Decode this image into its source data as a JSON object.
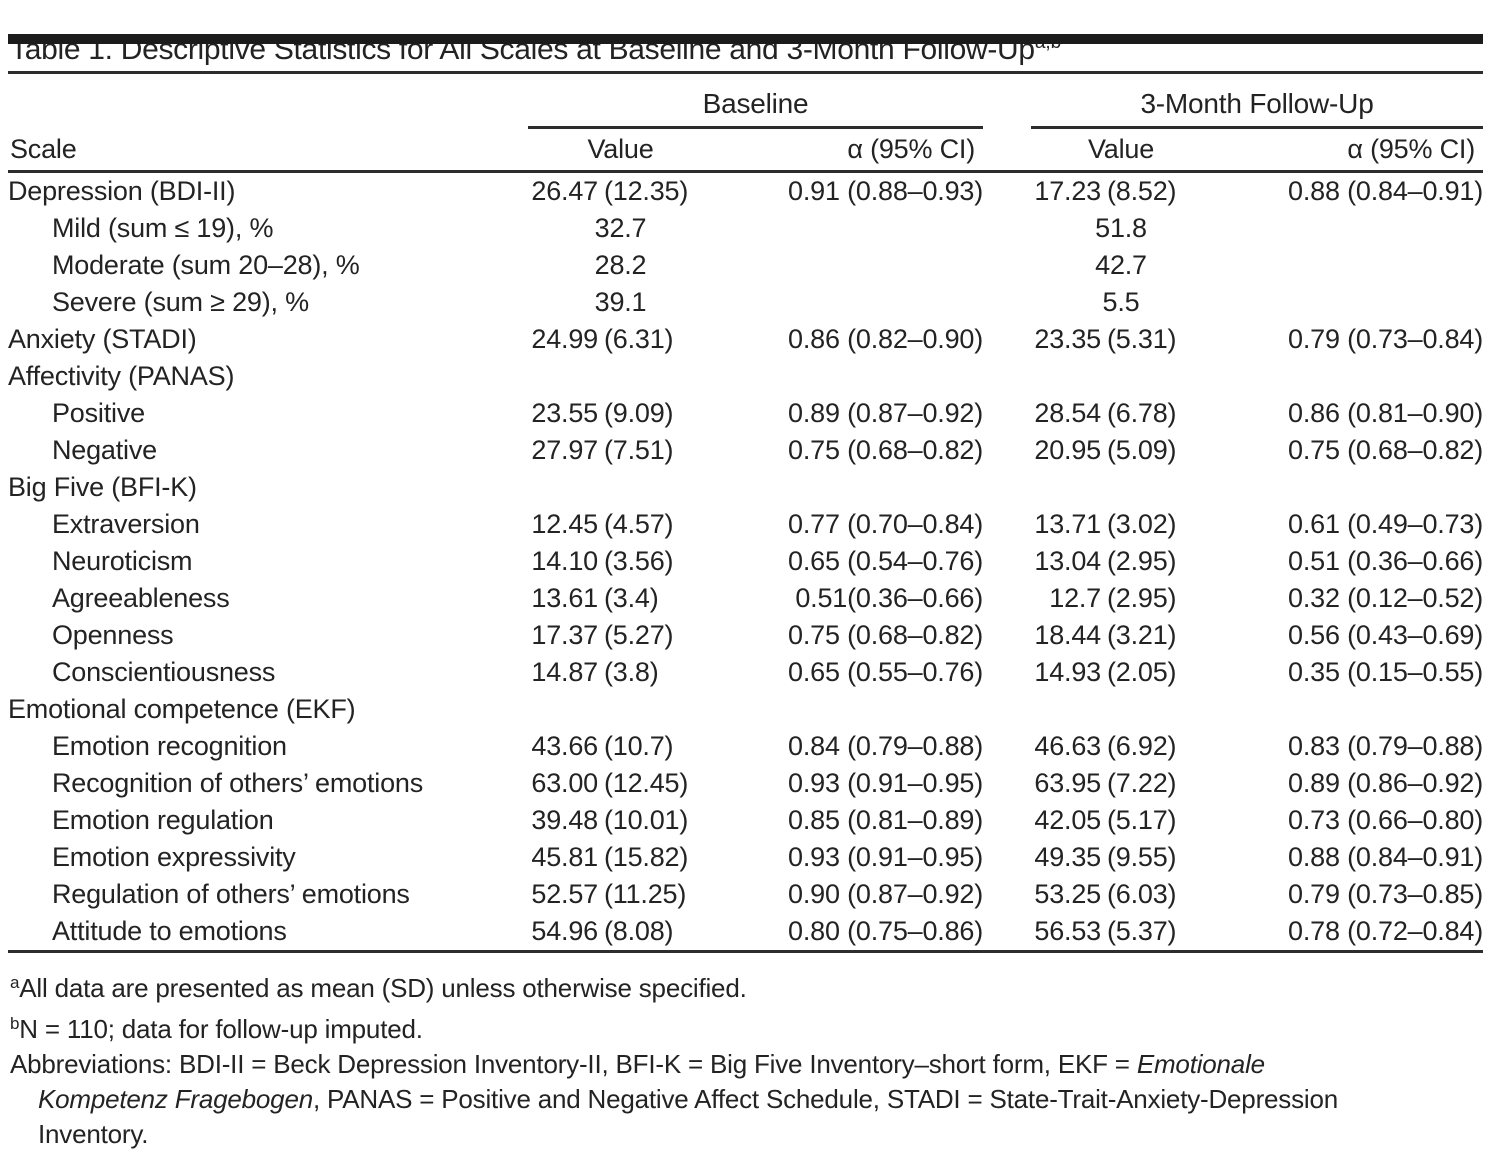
{
  "page": {
    "title": "Table 1. Descriptive Statistics for All Scales at Baseline and 3-Month Follow-Up",
    "title_superscript": "a,b"
  },
  "table": {
    "scale_header": "Scale",
    "groups": [
      {
        "label": "Baseline"
      },
      {
        "label": "3-Month Follow-Up"
      }
    ],
    "subcolumns": {
      "value": "Value",
      "alpha": "α (95% CI)"
    },
    "rows": [
      {
        "label": "Depression (BDI-II)",
        "indent": 0,
        "baseline_value": "26.47 (12.35)",
        "baseline_alpha": "0.91 (0.88–0.93)",
        "followup_value": "17.23 (8.52)",
        "followup_alpha": "0.88 (0.84–0.91)"
      },
      {
        "label": "Mild (sum ≤ 19), %",
        "indent": 1,
        "baseline_value": "32.7",
        "baseline_alpha": "",
        "followup_value": "51.8",
        "followup_alpha": ""
      },
      {
        "label": "Moderate (sum 20–28), %",
        "indent": 1,
        "baseline_value": "28.2",
        "baseline_alpha": "",
        "followup_value": "42.7",
        "followup_alpha": ""
      },
      {
        "label": "Severe (sum ≥ 29), %",
        "indent": 1,
        "baseline_value": "39.1",
        "baseline_alpha": "",
        "followup_value": "5.5",
        "followup_alpha": ""
      },
      {
        "label": "Anxiety (STADI)",
        "indent": 0,
        "baseline_value": "24.99 (6.31)",
        "baseline_alpha": "0.86 (0.82–0.90)",
        "followup_value": "23.35 (5.31)",
        "followup_alpha": "0.79 (0.73–0.84)"
      },
      {
        "label": "Affectivity (PANAS)",
        "indent": 0,
        "baseline_value": "",
        "baseline_alpha": "",
        "followup_value": "",
        "followup_alpha": ""
      },
      {
        "label": "Positive",
        "indent": 1,
        "baseline_value": "23.55 (9.09)",
        "baseline_alpha": "0.89 (0.87–0.92)",
        "followup_value": "28.54 (6.78)",
        "followup_alpha": "0.86 (0.81–0.90)"
      },
      {
        "label": "Negative",
        "indent": 1,
        "baseline_value": "27.97 (7.51)",
        "baseline_alpha": "0.75 (0.68–0.82)",
        "followup_value": "20.95 (5.09)",
        "followup_alpha": "0.75 (0.68–0.82)"
      },
      {
        "label": "Big Five (BFI-K)",
        "indent": 0,
        "baseline_value": "",
        "baseline_alpha": "",
        "followup_value": "",
        "followup_alpha": ""
      },
      {
        "label": "Extraversion",
        "indent": 1,
        "baseline_value": "12.45 (4.57)",
        "baseline_alpha": "0.77 (0.70–0.84)",
        "followup_value": "13.71 (3.02)",
        "followup_alpha": "0.61 (0.49–0.73)"
      },
      {
        "label": "Neuroticism",
        "indent": 1,
        "baseline_value": "14.10 (3.56)",
        "baseline_alpha": "0.65 (0.54–0.76)",
        "followup_value": "13.04 (2.95)",
        "followup_alpha": "0.51 (0.36–0.66)"
      },
      {
        "label": "Agreeableness",
        "indent": 1,
        "baseline_value": "13.61 (3.4)",
        "baseline_alpha": "0.51(0.36–0.66)",
        "followup_value": "12.7 (2.95)",
        "followup_alpha": "0.32 (0.12–0.52)"
      },
      {
        "label": "Openness",
        "indent": 1,
        "baseline_value": "17.37 (5.27)",
        "baseline_alpha": "0.75 (0.68–0.82)",
        "followup_value": "18.44 (3.21)",
        "followup_alpha": "0.56 (0.43–0.69)"
      },
      {
        "label": "Conscientiousness",
        "indent": 1,
        "baseline_value": "14.87 (3.8)",
        "baseline_alpha": "0.65 (0.55–0.76)",
        "followup_value": "14.93 (2.05)",
        "followup_alpha": "0.35 (0.15–0.55)"
      },
      {
        "label": "Emotional competence (EKF)",
        "indent": 0,
        "baseline_value": "",
        "baseline_alpha": "",
        "followup_value": "",
        "followup_alpha": ""
      },
      {
        "label": "Emotion recognition",
        "indent": 1,
        "baseline_value": "43.66 (10.7)",
        "baseline_alpha": "0.84 (0.79–0.88)",
        "followup_value": "46.63 (6.92)",
        "followup_alpha": "0.83 (0.79–0.88)"
      },
      {
        "label": "Recognition of others’ emotions",
        "indent": 1,
        "baseline_value": "63.00 (12.45)",
        "baseline_alpha": "0.93 (0.91–0.95)",
        "followup_value": "63.95 (7.22)",
        "followup_alpha": "0.89 (0.86–0.92)"
      },
      {
        "label": "Emotion regulation",
        "indent": 1,
        "baseline_value": "39.48 (10.01)",
        "baseline_alpha": "0.85 (0.81–0.89)",
        "followup_value": "42.05 (5.17)",
        "followup_alpha": "0.73 (0.66–0.80)"
      },
      {
        "label": "Emotion expressivity",
        "indent": 1,
        "baseline_value": "45.81 (15.82)",
        "baseline_alpha": "0.93 (0.91–0.95)",
        "followup_value": "49.35 (9.55)",
        "followup_alpha": "0.88 (0.84–0.91)"
      },
      {
        "label": "Regulation of others’ emotions",
        "indent": 1,
        "baseline_value": "52.57 (11.25)",
        "baseline_alpha": "0.90 (0.87–0.92)",
        "followup_value": "53.25 (6.03)",
        "followup_alpha": "0.79 (0.73–0.85)"
      },
      {
        "label": "Attitude to emotions",
        "indent": 1,
        "baseline_value": "54.96 (8.08)",
        "baseline_alpha": "0.80 (0.75–0.86)",
        "followup_value": "56.53 (5.37)",
        "followup_alpha": "0.78 (0.72–0.84)"
      }
    ]
  },
  "footnotes": {
    "a_marker": "a",
    "a_text": "All data are presented as mean (SD) unless otherwise specified.",
    "b_marker": "b",
    "b_text": "N = 110; data for follow-up imputed.",
    "abbrev_lines": [
      {
        "regular_before": "Abbreviations: BDI-II = Beck Depression Inventory-II, BFI-K = Big Five Inventory–short form, EKF = ",
        "italic": "Emotionale"
      },
      {
        "italic": "Kompetenz Fragebogen",
        "regular_after": ", PANAS = Positive and Negative Affect Schedule, STADI = State-Trait-Anxiety-Depression"
      },
      {
        "regular": "Inventory."
      }
    ]
  }
}
